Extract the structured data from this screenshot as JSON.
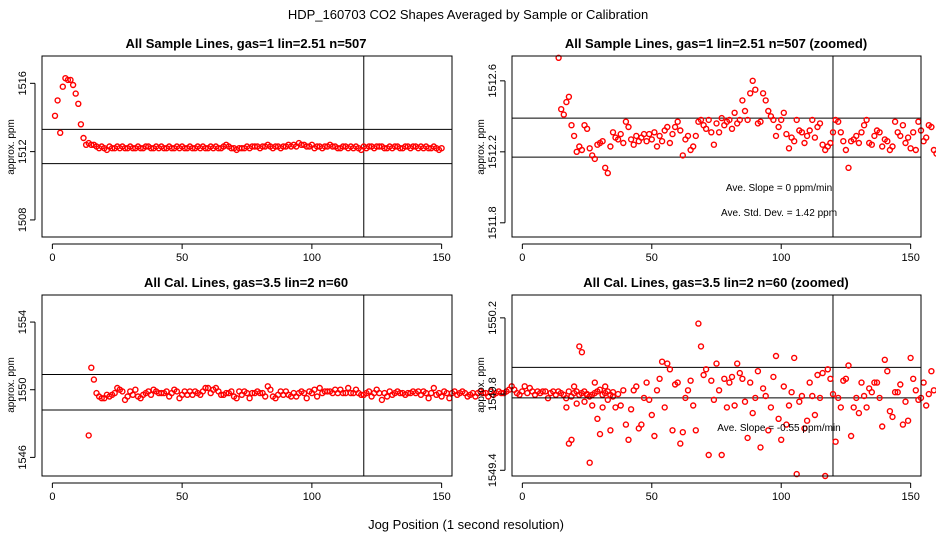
{
  "figure": {
    "title": "HDP_160703  CO2 Shapes Averaged by Sample or Calibration",
    "xlabel": "Jog Position (1 second resolution)"
  },
  "chart_data": [
    {
      "type": "scatter",
      "title": "All Sample Lines, gas=1 lin=2.51 n=507",
      "ylabel": "approx. ppm",
      "xlim": [
        -4,
        154
      ],
      "ylim": [
        1507.0,
        1517.6
      ],
      "xticks": [
        0,
        50,
        100,
        150
      ],
      "yticks": [
        1508,
        1512,
        1516
      ],
      "hlines": [
        1511.3,
        1513.3
      ],
      "vline": 120,
      "point_color": "#ff0000",
      "annotations": [],
      "x_start": 1,
      "values": [
        1514.1,
        1515.0,
        1513.1,
        1515.8,
        1516.3,
        1516.2,
        1516.2,
        1515.9,
        1515.4,
        1514.8,
        1513.6,
        1512.8,
        1512.4,
        1512.5,
        1512.4,
        1512.4,
        1512.3,
        1512.2,
        1512.3,
        1512.2,
        1512.1,
        1512.3,
        1512.2,
        1512.2,
        1512.3,
        1512.2,
        1512.3,
        1512.2,
        1512.2,
        1512.3,
        1512.2,
        1512.2,
        1512.3,
        1512.2,
        1512.2,
        1512.3,
        1512.3,
        1512.2,
        1512.2,
        1512.3,
        1512.2,
        1512.3,
        1512.2,
        1512.2,
        1512.3,
        1512.2,
        1512.2,
        1512.3,
        1512.2,
        1512.3,
        1512.2,
        1512.2,
        1512.3,
        1512.2,
        1512.2,
        1512.3,
        1512.2,
        1512.3,
        1512.2,
        1512.2,
        1512.3,
        1512.2,
        1512.3,
        1512.2,
        1512.2,
        1512.3,
        1512.4,
        1512.3,
        1512.2,
        1512.2,
        1512.1,
        1512.2,
        1512.2,
        1512.2,
        1512.3,
        1512.2,
        1512.3,
        1512.3,
        1512.3,
        1512.2,
        1512.3,
        1512.3,
        1512.4,
        1512.3,
        1512.2,
        1512.3,
        1512.3,
        1512.2,
        1512.3,
        1512.3,
        1512.4,
        1512.3,
        1512.4,
        1512.3,
        1512.5,
        1512.4,
        1512.4,
        1512.3,
        1512.3,
        1512.4,
        1512.2,
        1512.3,
        1512.3,
        1512.2,
        1512.3,
        1512.3,
        1512.4,
        1512.3,
        1512.3,
        1512.2,
        1512.2,
        1512.3,
        1512.3,
        1512.2,
        1512.3,
        1512.2,
        1512.3,
        1512.2,
        1512.1,
        1512.3,
        1512.2,
        1512.3,
        1512.3,
        1512.2,
        1512.3,
        1512.3,
        1512.3,
        1512.2,
        1512.2,
        1512.3,
        1512.2,
        1512.3,
        1512.3,
        1512.2,
        1512.2,
        1512.3,
        1512.3,
        1512.2,
        1512.3,
        1512.3,
        1512.2,
        1512.3,
        1512.2,
        1512.3,
        1512.2,
        1512.2,
        1512.3,
        1512.2,
        1512.1,
        1512.2
      ]
    },
    {
      "type": "scatter",
      "title": "All Sample Lines, gas=1 lin=2.51 n=507 (zoomed)",
      "ylabel": "approx. ppm",
      "xlim": [
        -4,
        154
      ],
      "ylim": [
        1511.72,
        1512.74
      ],
      "xticks": [
        0,
        50,
        100,
        150
      ],
      "yticks": [
        1511.8,
        1512.2,
        1512.6
      ],
      "hlines": [
        1512.17,
        1512.39
      ],
      "vline": 120,
      "point_color": "#ff0000",
      "annotations": [
        "Ave. Slope =  0  ppm/min",
        "Ave. Std. Dev. =  1.42  ppm"
      ],
      "x_start": 14,
      "values": [
        1512.73,
        1512.44,
        1512.41,
        1512.48,
        1512.51,
        1512.35,
        1512.29,
        1512.2,
        1512.23,
        1512.21,
        1512.35,
        1512.33,
        1512.22,
        1512.18,
        1512.16,
        1512.24,
        1512.25,
        1512.26,
        1512.11,
        1512.08,
        1512.23,
        1512.31,
        1512.28,
        1512.27,
        1512.3,
        1512.25,
        1512.37,
        1512.34,
        1512.27,
        1512.24,
        1512.29,
        1512.26,
        1512.28,
        1512.3,
        1512.26,
        1512.3,
        1512.27,
        1512.31,
        1512.23,
        1512.29,
        1512.26,
        1512.32,
        1512.34,
        1512.25,
        1512.3,
        1512.34,
        1512.37,
        1512.32,
        1512.18,
        1512.27,
        1512.29,
        1512.21,
        1512.23,
        1512.29,
        1512.37,
        1512.38,
        1512.35,
        1512.33,
        1512.38,
        1512.31,
        1512.24,
        1512.36,
        1512.31,
        1512.39,
        1512.35,
        1512.37,
        1512.38,
        1512.33,
        1512.42,
        1512.36,
        1512.38,
        1512.49,
        1512.43,
        1512.38,
        1512.53,
        1512.6,
        1512.55,
        1512.36,
        1512.37,
        1512.53,
        1512.49,
        1512.43,
        1512.4,
        1512.38,
        1512.29,
        1512.34,
        1512.38,
        1512.42,
        1512.3,
        1512.22,
        1512.28,
        1512.26,
        1512.38,
        1512.32,
        1512.31,
        1512.25,
        1512.29,
        1512.32,
        1512.38,
        1512.28,
        1512.34,
        1512.36,
        1512.24,
        1512.21,
        1512.23,
        1512.25,
        1512.31,
        1512.38,
        1512.37,
        1512.31,
        1512.26,
        1512.21,
        1512.11,
        1512.26,
        1512.27,
        1512.29,
        1512.25,
        1512.31,
        1512.35,
        1512.38,
        1512.25,
        1512.24,
        1512.29,
        1512.32,
        1512.31,
        1512.23,
        1512.27,
        1512.26,
        1512.21,
        1512.23,
        1512.37,
        1512.31,
        1512.29,
        1512.35,
        1512.25,
        1512.28,
        1512.22,
        1512.31,
        1512.21,
        1512.37,
        1512.32,
        1512.26,
        1512.28,
        1512.35,
        1512.34,
        1512.21,
        1512.19,
        1512.18
      ]
    },
    {
      "type": "scatter",
      "title": "All Cal. Lines, gas=3.5 lin=2 n=60",
      "ylabel": "approx. ppm",
      "xlim": [
        -4,
        154
      ],
      "ylim": [
        1544.9,
        1555.6
      ],
      "xticks": [
        0,
        50,
        100,
        150
      ],
      "yticks": [
        1546,
        1550,
        1554
      ],
      "hlines": [
        1548.8,
        1550.9
      ],
      "vline": 120,
      "point_color": "#ff0000",
      "annotations": [],
      "x_start": 14,
      "values": [
        1547.3,
        1551.3,
        1550.6,
        1549.8,
        1549.6,
        1549.5,
        1549.5,
        1549.7,
        1549.6,
        1549.7,
        1549.8,
        1550.1,
        1550.0,
        1549.9,
        1549.4,
        1549.6,
        1549.9,
        1549.7,
        1550.0,
        1549.6,
        1549.5,
        1549.7,
        1549.8,
        1549.9,
        1549.7,
        1550.0,
        1549.9,
        1549.8,
        1549.8,
        1549.8,
        1549.9,
        1549.6,
        1549.8,
        1550.0,
        1549.9,
        1549.5,
        1549.7,
        1549.9,
        1549.7,
        1549.9,
        1549.7,
        1549.9,
        1549.8,
        1549.7,
        1549.9,
        1550.1,
        1550.1,
        1549.8,
        1550.0,
        1550.1,
        1549.9,
        1549.7,
        1549.7,
        1549.8,
        1549.8,
        1549.9,
        1549.6,
        1549.5,
        1549.9,
        1549.7,
        1549.9,
        1549.8,
        1549.5,
        1549.8,
        1549.8,
        1549.9,
        1549.8,
        1549.8,
        1549.6,
        1550.2,
        1550.0,
        1549.6,
        1549.5,
        1549.7,
        1549.9,
        1549.7,
        1549.9,
        1549.7,
        1549.6,
        1549.8,
        1549.6,
        1549.8,
        1549.9,
        1549.8,
        1549.5,
        1549.9,
        1549.8,
        1550.0,
        1549.6,
        1550.1,
        1549.8,
        1549.9,
        1549.9,
        1549.9,
        1549.8,
        1550.0,
        1549.8,
        1550.0,
        1549.8,
        1549.8,
        1550.1,
        1549.8,
        1549.8,
        1550.0,
        1549.8,
        1549.7,
        1549.7,
        1549.8,
        1549.9,
        1549.6,
        1549.8,
        1550.0,
        1549.8,
        1549.4,
        1549.8,
        1549.6,
        1549.9,
        1549.7,
        1549.8,
        1549.9,
        1549.8,
        1549.8,
        1549.7,
        1549.8,
        1549.8,
        1549.9,
        1549.8,
        1549.9,
        1549.7,
        1549.9,
        1549.8,
        1549.5,
        1549.8,
        1550.1,
        1549.7,
        1549.8,
        1549.6,
        1549.9,
        1549.8,
        1549.5,
        1549.8,
        1549.9,
        1549.7,
        1549.8,
        1549.9,
        1549.8,
        1549.6,
        1549.7,
        1549.8,
        1549.6,
        1549.8,
        1549.9,
        1549.8,
        1549.8,
        1549.6,
        1549.9,
        1549.7,
        1549.8,
        1549.9,
        1549.8,
        1549.8,
        1549.9,
        1550.0,
        1550.2,
        1550.0,
        1549.8,
        1549.7,
        1549.9,
        1550.2,
        1549.8,
        1550.1,
        1549.9,
        1549.7,
        1549.9,
        1549.8,
        1549.9,
        1549.9,
        1549.5,
        1549.8,
        1549.9,
        1549.7,
        1549.9,
        1549.8,
        1549.7,
        1549.5,
        1549.9,
        1549.6,
        1549.8,
        1549.9,
        1549.7,
        1549.8,
        1549.9,
        1549.7,
        1549.6,
        1549.7,
        1549.8,
        1549.9,
        1550.0,
        1549.7,
        1549.8,
        1549.9,
        1549.7,
        1549.6
      ]
    },
    {
      "type": "scatter",
      "title": "All Cal. Lines, gas=3.5 lin=2 n=60 (zoomed)",
      "ylabel": "approx. ppm",
      "xlim": [
        -4,
        154
      ],
      "ylim": [
        1549.37,
        1550.32
      ],
      "xticks": [
        0,
        50,
        100,
        150
      ],
      "yticks": [
        1549.4,
        1549.8,
        1550.2
      ],
      "hlines": [
        1549.78,
        1549.94
      ],
      "vline": 120,
      "point_color": "#ff0000",
      "annotations": [
        "Ave. Slope =  -0.55  ppm/min"
      ],
      "x_start": 17,
      "values": [
        1549.73,
        1549.54,
        1549.56,
        1549.84,
        1549.75,
        1550.05,
        1550.02,
        1549.76,
        1549.8,
        1549.44,
        1549.74,
        1549.86,
        1549.67,
        1549.59,
        1549.73,
        1549.84,
        1549.77,
        1549.61,
        1549.81,
        1549.73,
        1549.8,
        1549.74,
        1549.82,
        1549.64,
        1549.56,
        1549.72,
        1549.82,
        1549.84,
        1549.62,
        1549.64,
        1549.78,
        1549.86,
        1549.77,
        1549.69,
        1549.58,
        1549.82,
        1549.88,
        1549.97,
        1549.73,
        1549.96,
        1549.93,
        1549.61,
        1549.85,
        1549.86,
        1549.54,
        1549.6,
        1549.78,
        1549.82,
        1549.87,
        1549.74,
        1549.61,
        1550.17,
        1550.05,
        1549.9,
        1549.93,
        1549.48,
        1549.87,
        1549.77,
        1549.96,
        1549.82,
        1549.48,
        1549.88,
        1549.73,
        1549.86,
        1549.89,
        1549.74,
        1549.96,
        1549.91,
        1549.88,
        1549.76,
        1549.57,
        1549.86,
        1549.7,
        1549.78,
        1549.92,
        1549.52,
        1549.83,
        1549.79,
        1549.61,
        1549.73,
        1549.89,
        1550.0,
        1549.67,
        1549.56,
        1549.84,
        1549.64,
        1549.74,
        1549.81,
        1549.99,
        1549.38,
        1549.76,
        1549.79,
        1549.62,
        1549.66,
        1549.86,
        1549.79,
        1549.69,
        1549.9,
        1549.78,
        1549.91,
        1549.37,
        1549.93,
        1549.88,
        1549.8,
        1549.55,
        1549.78,
        1549.73,
        1549.87,
        1549.88,
        1549.95,
        1549.58,
        1549.73,
        1549.78,
        1549.7,
        1549.86,
        1549.79,
        1549.73,
        1549.83,
        1549.81,
        1549.86,
        1549.86,
        1549.78,
        1549.63,
        1549.98,
        1549.92,
        1549.71,
        1549.68,
        1549.81,
        1549.81,
        1549.85,
        1549.64,
        1549.76,
        1549.66,
        1549.99,
        1549.88,
        1549.82,
        1549.77,
        1549.78,
        1549.86,
        1549.74,
        1549.8,
        1549.92,
        1549.82
      ]
    }
  ]
}
